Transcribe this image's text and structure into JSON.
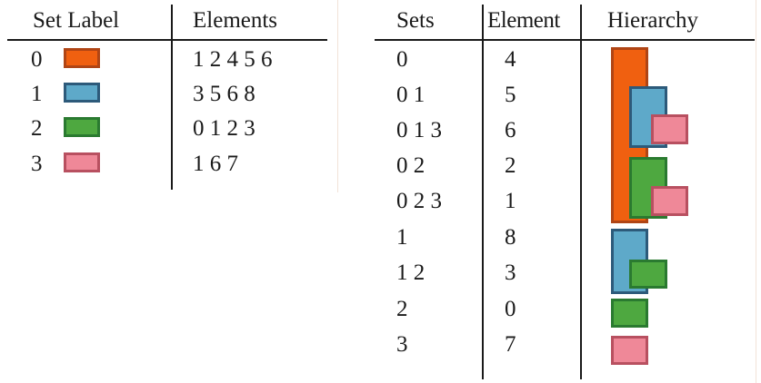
{
  "colors": {
    "set0_fill": "#f06010",
    "set0_border": "#b04515",
    "set1_fill": "#5ea9c9",
    "set1_border": "#2d5a7a",
    "set2_fill": "#4ea840",
    "set2_border": "#2a7a30",
    "set3_fill": "#ef8898",
    "set3_border": "#b85060",
    "rule": "#1a1a1a"
  },
  "left_table": {
    "headers": {
      "set_label": "Set Label",
      "elements": "Elements"
    },
    "rows": [
      {
        "label": "0",
        "elements": "1 2 4 5 6",
        "swatch": "set0"
      },
      {
        "label": "1",
        "elements": "3 5 6 8",
        "swatch": "set1"
      },
      {
        "label": "2",
        "elements": "0 1 2 3",
        "swatch": "set2"
      },
      {
        "label": "3",
        "elements": "1 6 7",
        "swatch": "set3"
      }
    ]
  },
  "right_table": {
    "headers": {
      "sets": "Sets",
      "element": "Element",
      "hierarchy": "Hierarchy"
    },
    "rows": [
      {
        "sets": "0",
        "element": "4"
      },
      {
        "sets": "0 1",
        "element": "5"
      },
      {
        "sets": "0 1 3",
        "element": "6"
      },
      {
        "sets": "0 2",
        "element": "2"
      },
      {
        "sets": "0 2 3",
        "element": "1"
      },
      {
        "sets": "1",
        "element": "8"
      },
      {
        "sets": "1 2",
        "element": "3"
      },
      {
        "sets": "2",
        "element": "0"
      },
      {
        "sets": "3",
        "element": "7"
      }
    ]
  }
}
